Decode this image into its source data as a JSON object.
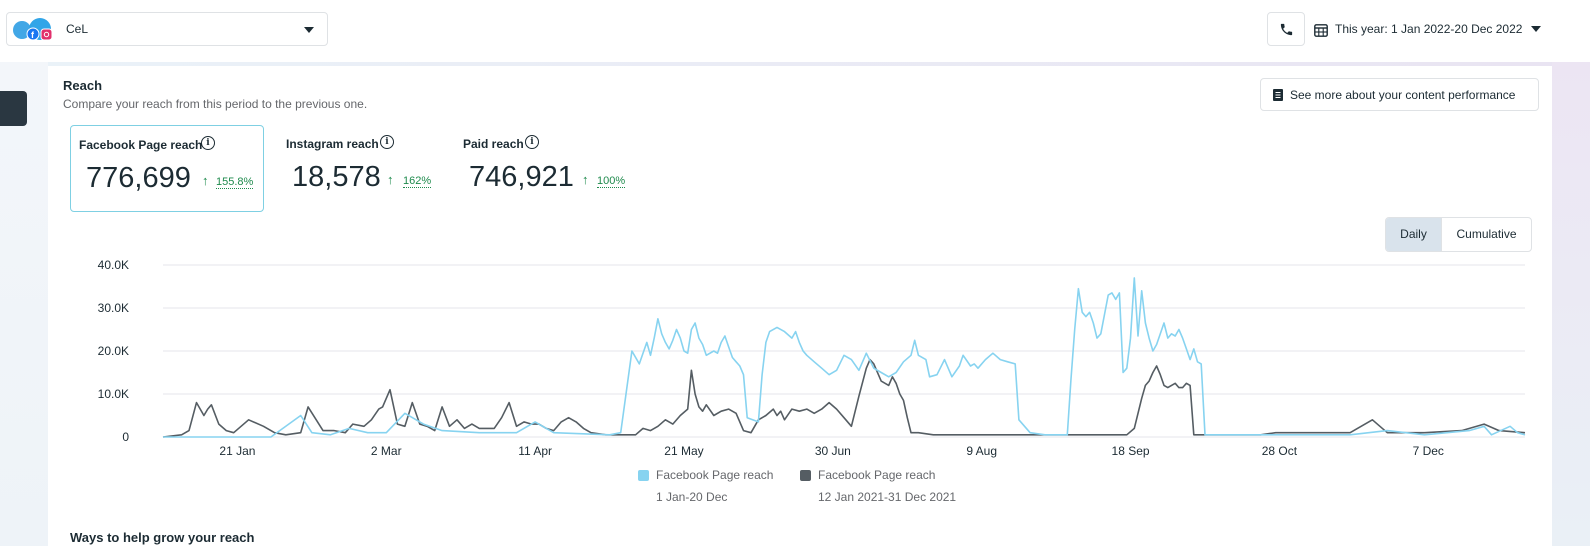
{
  "header": {
    "account_name": "CeL",
    "date_range": "This year: 1 Jan 2022-20 Dec 2022"
  },
  "reach_card": {
    "title": "Reach",
    "subtitle": "Compare your reach from this period to the previous one.",
    "see_more_label": "See more about your content performance",
    "metrics": [
      {
        "label": "Facebook Page reach",
        "value": "776,699",
        "change": "155.8%",
        "selected": true
      },
      {
        "label": "Instagram reach",
        "value": "18,578",
        "change": "162%",
        "selected": false
      },
      {
        "label": "Paid reach",
        "value": "746,921",
        "change": "100%",
        "selected": false
      }
    ],
    "view_toggle": {
      "daily": "Daily",
      "cumulative": "Cumulative",
      "selected": "daily"
    },
    "footer_heading": "Ways to help grow your reach"
  },
  "colors": {
    "current_series": "#87d3f0",
    "previous_series": "#555d63",
    "metric_selected_border": "#7fd0e3",
    "positive_change": "#1e8a4c"
  },
  "icons": [
    "facebook-icon",
    "instagram-icon",
    "phone-icon",
    "calendar-icon",
    "document-icon",
    "info-icon",
    "chevron-down-icon",
    "arrow-up-icon"
  ],
  "chart_data": {
    "type": "line",
    "title": "",
    "xlabel": "",
    "ylabel": "",
    "ylim": [
      0,
      40000
    ],
    "y_ticks": [
      {
        "value": 0,
        "label": "0"
      },
      {
        "value": 10000,
        "label": "10.0K"
      },
      {
        "value": 20000,
        "label": "20.0K"
      },
      {
        "value": 30000,
        "label": "30.0K"
      },
      {
        "value": 40000,
        "label": "40.0K"
      }
    ],
    "x_ticks": [
      {
        "day": 21,
        "label": "21 Jan"
      },
      {
        "day": 61,
        "label": "2 Mar"
      },
      {
        "day": 101,
        "label": "11 Apr"
      },
      {
        "day": 141,
        "label": "21 May"
      },
      {
        "day": 181,
        "label": "30 Jun"
      },
      {
        "day": 221,
        "label": "9 Aug"
      },
      {
        "day": 261,
        "label": "18 Sep"
      },
      {
        "day": 301,
        "label": "28 Oct"
      },
      {
        "day": 341,
        "label": "7 Dec"
      }
    ],
    "grid": true,
    "legend_position": "bottom",
    "series": [
      {
        "name": "Facebook Page reach",
        "range": "1 Jan-20 Dec",
        "color": "#87d3f0",
        "points": [
          [
            1,
            0
          ],
          [
            20,
            0
          ],
          [
            30,
            0
          ],
          [
            38,
            5000
          ],
          [
            41,
            1000
          ],
          [
            46,
            500
          ],
          [
            51,
            2000
          ],
          [
            56,
            1000
          ],
          [
            61,
            1000
          ],
          [
            66,
            5500
          ],
          [
            71,
            3000
          ],
          [
            76,
            1500
          ],
          [
            86,
            1000
          ],
          [
            96,
            1000
          ],
          [
            101,
            3500
          ],
          [
            106,
            1000
          ],
          [
            121,
            500
          ],
          [
            124,
            1000
          ],
          [
            127,
            20000
          ],
          [
            129,
            17000
          ],
          [
            131,
            22000
          ],
          [
            132,
            19000
          ],
          [
            133,
            23000
          ],
          [
            134,
            27500
          ],
          [
            135,
            24000
          ],
          [
            136,
            22000
          ],
          [
            137,
            20500
          ],
          [
            138,
            22500
          ],
          [
            139,
            25000
          ],
          [
            140,
            23000
          ],
          [
            141,
            20000
          ],
          [
            142,
            19500
          ],
          [
            143,
            25000
          ],
          [
            144,
            26500
          ],
          [
            145,
            23000
          ],
          [
            146,
            21500
          ],
          [
            147,
            19000
          ],
          [
            149,
            20000
          ],
          [
            150,
            19500
          ],
          [
            151,
            22000
          ],
          [
            152,
            23500
          ],
          [
            153,
            21000
          ],
          [
            154,
            18500
          ],
          [
            155,
            17500
          ],
          [
            156,
            16500
          ],
          [
            157,
            14500
          ],
          [
            158,
            4500
          ],
          [
            161,
            3500
          ],
          [
            162,
            14500
          ],
          [
            163,
            22000
          ],
          [
            164,
            24500
          ],
          [
            166,
            25500
          ],
          [
            168,
            24500
          ],
          [
            170,
            23000
          ],
          [
            171,
            24500
          ],
          [
            172,
            22000
          ],
          [
            173,
            20000
          ],
          [
            174,
            19000
          ],
          [
            176,
            17500
          ],
          [
            178,
            16000
          ],
          [
            180,
            14500
          ],
          [
            182,
            15500
          ],
          [
            184,
            19000
          ],
          [
            186,
            18000
          ],
          [
            188,
            15500
          ],
          [
            190,
            19500
          ],
          [
            192,
            16000
          ],
          [
            194,
            15000
          ],
          [
            196,
            14000
          ],
          [
            198,
            15000
          ],
          [
            200,
            17500
          ],
          [
            202,
            19000
          ],
          [
            203,
            22500
          ],
          [
            204,
            19000
          ],
          [
            206,
            18000
          ],
          [
            207,
            14000
          ],
          [
            209,
            14500
          ],
          [
            211,
            18000
          ],
          [
            213,
            14000
          ],
          [
            215,
            16500
          ],
          [
            216,
            19000
          ],
          [
            218,
            16500
          ],
          [
            219,
            17000
          ],
          [
            220,
            16000
          ],
          [
            222,
            18000
          ],
          [
            224,
            19500
          ],
          [
            226,
            18000
          ],
          [
            228,
            17500
          ],
          [
            230,
            17000
          ],
          [
            231,
            4000
          ],
          [
            234,
            1000
          ],
          [
            238,
            500
          ],
          [
            244,
            500
          ],
          [
            245,
            13500
          ],
          [
            246,
            25000
          ],
          [
            247,
            34500
          ],
          [
            248,
            29000
          ],
          [
            249,
            28000
          ],
          [
            250,
            29000
          ],
          [
            251,
            26500
          ],
          [
            252,
            23000
          ],
          [
            253,
            24000
          ],
          [
            254,
            28500
          ],
          [
            255,
            33000
          ],
          [
            256,
            33500
          ],
          [
            257,
            32000
          ],
          [
            258,
            33500
          ],
          [
            259,
            15000
          ],
          [
            260,
            16000
          ],
          [
            261,
            23000
          ],
          [
            262,
            37000
          ],
          [
            263,
            23500
          ],
          [
            264,
            34000
          ],
          [
            265,
            26500
          ],
          [
            266,
            23000
          ],
          [
            267,
            20000
          ],
          [
            268,
            21500
          ],
          [
            269,
            24000
          ],
          [
            270,
            26500
          ],
          [
            271,
            23000
          ],
          [
            272,
            24000
          ],
          [
            273,
            23500
          ],
          [
            274,
            25000
          ],
          [
            275,
            23000
          ],
          [
            276,
            20500
          ],
          [
            277,
            18000
          ],
          [
            278,
            20500
          ],
          [
            279,
            17500
          ],
          [
            280,
            17000
          ],
          [
            281,
            500
          ],
          [
            290,
            500
          ],
          [
            300,
            500
          ],
          [
            320,
            500
          ],
          [
            330,
            1500
          ],
          [
            340,
            500
          ],
          [
            352,
            1500
          ],
          [
            356,
            2500
          ],
          [
            358,
            500
          ],
          [
            363,
            2500
          ],
          [
            365,
            1000
          ],
          [
            367,
            500
          ]
        ]
      },
      {
        "name": "Facebook Page reach",
        "range": "12 Jan 2021-31 Dec 2021",
        "color": "#555d63",
        "points": [
          [
            1,
            0
          ],
          [
            6,
            500
          ],
          [
            8,
            1500
          ],
          [
            10,
            8000
          ],
          [
            12,
            5000
          ],
          [
            13,
            6500
          ],
          [
            14,
            7500
          ],
          [
            16,
            3000
          ],
          [
            18,
            1500
          ],
          [
            20,
            1000
          ],
          [
            24,
            4000
          ],
          [
            28,
            2500
          ],
          [
            31,
            1000
          ],
          [
            34,
            500
          ],
          [
            38,
            1000
          ],
          [
            40,
            7000
          ],
          [
            44,
            1500
          ],
          [
            47,
            1500
          ],
          [
            50,
            1000
          ],
          [
            52,
            3000
          ],
          [
            55,
            2500
          ],
          [
            57,
            4000
          ],
          [
            59,
            6500
          ],
          [
            60,
            7000
          ],
          [
            62,
            11000
          ],
          [
            64,
            3000
          ],
          [
            66,
            2500
          ],
          [
            68,
            8000
          ],
          [
            70,
            3000
          ],
          [
            72,
            2500
          ],
          [
            74,
            1500
          ],
          [
            76,
            7000
          ],
          [
            78,
            2500
          ],
          [
            80,
            4000
          ],
          [
            82,
            2000
          ],
          [
            84,
            3000
          ],
          [
            86,
            2000
          ],
          [
            90,
            2000
          ],
          [
            92,
            4500
          ],
          [
            94,
            8000
          ],
          [
            96,
            2500
          ],
          [
            98,
            3500
          ],
          [
            100,
            3000
          ],
          [
            102,
            3000
          ],
          [
            104,
            2000
          ],
          [
            106,
            1500
          ],
          [
            108,
            3500
          ],
          [
            110,
            4500
          ],
          [
            112,
            3500
          ],
          [
            114,
            2000
          ],
          [
            116,
            1000
          ],
          [
            120,
            500
          ],
          [
            124,
            500
          ],
          [
            128,
            500
          ],
          [
            130,
            2000
          ],
          [
            132,
            1500
          ],
          [
            134,
            2500
          ],
          [
            136,
            4000
          ],
          [
            138,
            3000
          ],
          [
            140,
            5000
          ],
          [
            142,
            6500
          ],
          [
            143,
            15500
          ],
          [
            144,
            10000
          ],
          [
            145,
            7000
          ],
          [
            146,
            6000
          ],
          [
            147,
            7500
          ],
          [
            149,
            5000
          ],
          [
            151,
            6000
          ],
          [
            153,
            6500
          ],
          [
            155,
            5500
          ],
          [
            157,
            1500
          ],
          [
            159,
            1000
          ],
          [
            161,
            4000
          ],
          [
            163,
            5000
          ],
          [
            165,
            6500
          ],
          [
            166,
            5000
          ],
          [
            167,
            6000
          ],
          [
            168,
            4000
          ],
          [
            170,
            6500
          ],
          [
            172,
            6000
          ],
          [
            174,
            6500
          ],
          [
            176,
            5500
          ],
          [
            178,
            6500
          ],
          [
            180,
            8000
          ],
          [
            182,
            6500
          ],
          [
            184,
            4500
          ],
          [
            186,
            2500
          ],
          [
            188,
            9500
          ],
          [
            190,
            16000
          ],
          [
            191,
            18000
          ],
          [
            192,
            17000
          ],
          [
            194,
            13000
          ],
          [
            196,
            12000
          ],
          [
            197,
            14000
          ],
          [
            198,
            12500
          ],
          [
            199,
            10000
          ],
          [
            200,
            8500
          ],
          [
            201,
            4500
          ],
          [
            202,
            1000
          ],
          [
            204,
            1000
          ],
          [
            208,
            500
          ],
          [
            212,
            500
          ],
          [
            220,
            500
          ],
          [
            230,
            500
          ],
          [
            238,
            500
          ],
          [
            250,
            500
          ],
          [
            256,
            500
          ],
          [
            260,
            500
          ],
          [
            262,
            2000
          ],
          [
            264,
            9000
          ],
          [
            265,
            12000
          ],
          [
            266,
            13000
          ],
          [
            267,
            15000
          ],
          [
            268,
            16500
          ],
          [
            269,
            14500
          ],
          [
            270,
            12000
          ],
          [
            271,
            11500
          ],
          [
            272,
            12000
          ],
          [
            273,
            12500
          ],
          [
            274,
            11500
          ],
          [
            275,
            11500
          ],
          [
            276,
            12500
          ],
          [
            277,
            12000
          ],
          [
            278,
            500
          ],
          [
            288,
            500
          ],
          [
            296,
            500
          ],
          [
            300,
            1000
          ],
          [
            310,
            1000
          ],
          [
            320,
            1000
          ],
          [
            326,
            4000
          ],
          [
            330,
            1000
          ],
          [
            340,
            1000
          ],
          [
            350,
            1500
          ],
          [
            356,
            3000
          ],
          [
            360,
            1500
          ],
          [
            367,
            1000
          ]
        ]
      }
    ]
  }
}
